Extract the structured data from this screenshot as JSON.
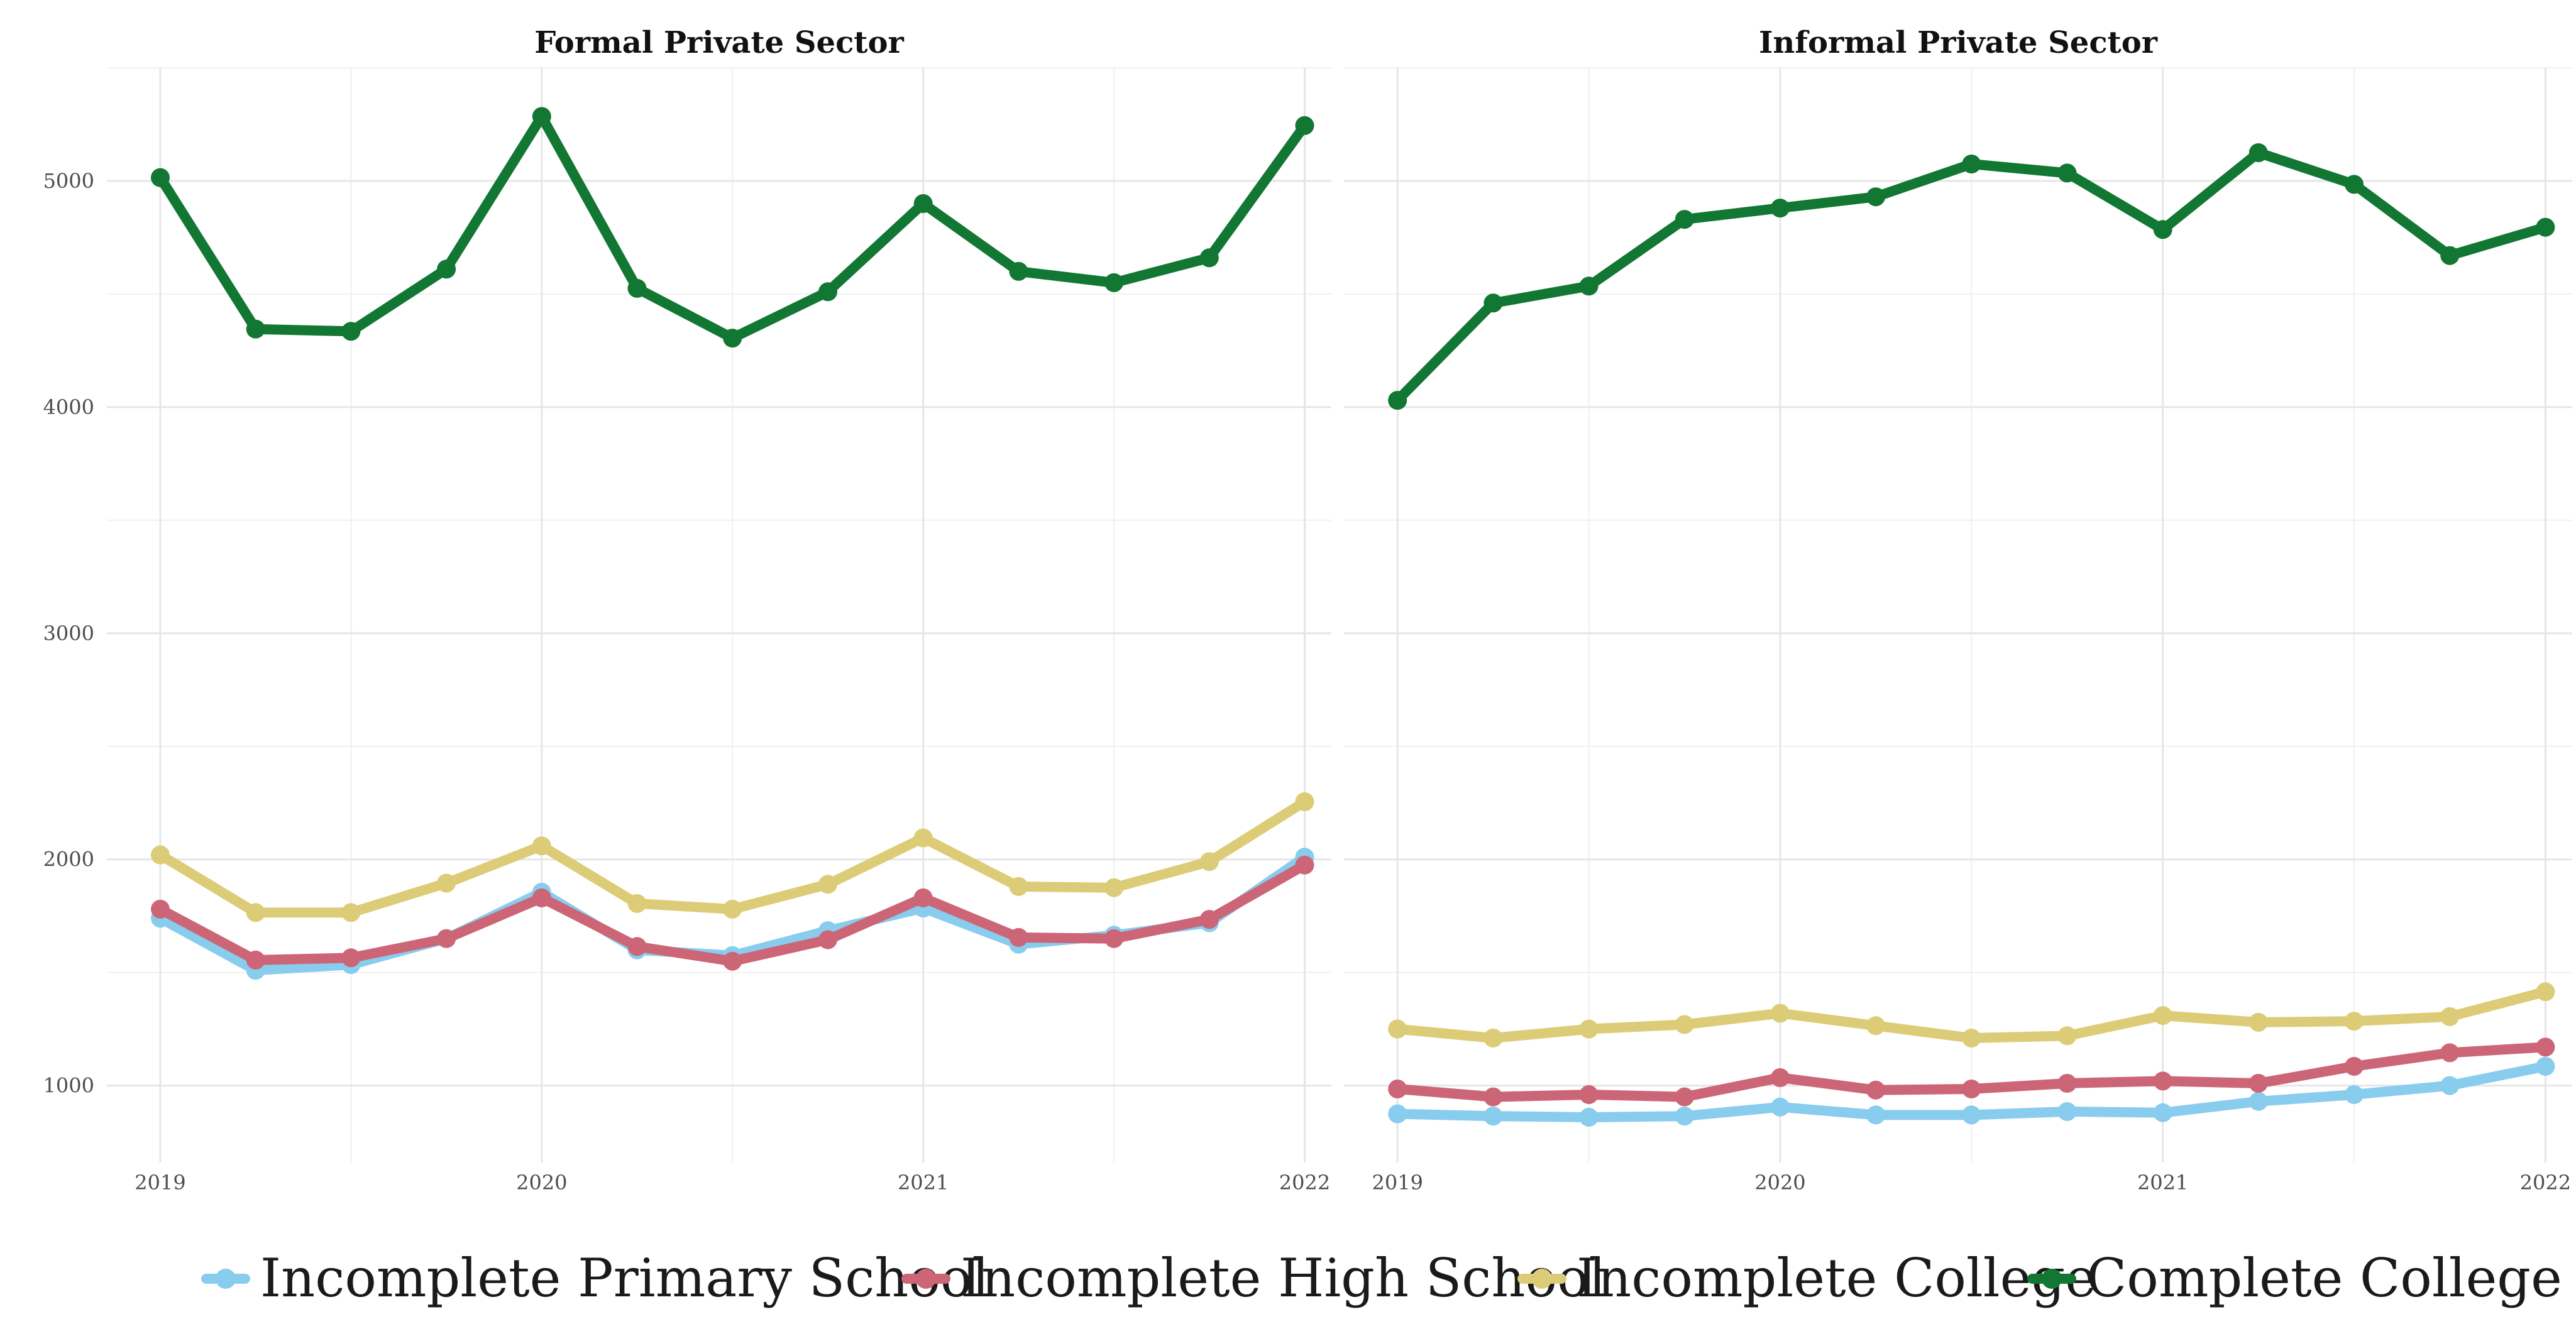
{
  "chart_data": {
    "type": "line",
    "legend_position": "bottom",
    "grid": true,
    "x": [
      2019.0,
      2019.25,
      2019.5,
      2019.75,
      2020.0,
      2020.25,
      2020.5,
      2020.75,
      2021.0,
      2021.25,
      2021.5,
      2021.75,
      2022.0
    ],
    "xticks": [
      2019,
      2020,
      2021,
      2022
    ],
    "xtick_labels": [
      "2019",
      "2020",
      "2021",
      "2022"
    ],
    "xlim": [
      2018.86,
      2022.07
    ],
    "ylim": [
      660,
      5500
    ],
    "yticks": [
      1000,
      2000,
      3000,
      4000,
      5000
    ],
    "ytick_labels": [
      "1000",
      "2000",
      "3000",
      "4000",
      "5000"
    ],
    "series_styles": [
      {
        "name": "Incomplete Primary School",
        "color": "#88CCEE"
      },
      {
        "name": "Incomplete High School",
        "color": "#CC6677"
      },
      {
        "name": "Incomplete College",
        "color": "#DDCC77"
      },
      {
        "name": "Complete College",
        "color": "#117733"
      }
    ],
    "panels": [
      {
        "title": "Formal Private Sector",
        "series": [
          {
            "name": "Incomplete Primary School",
            "values": [
              1740,
              1510,
              1535,
              1650,
              1855,
              1600,
              1575,
              1685,
              1785,
              1625,
              1665,
              1720,
              2010
            ]
          },
          {
            "name": "Incomplete High School",
            "values": [
              1780,
              1555,
              1565,
              1650,
              1830,
              1615,
              1550,
              1645,
              1830,
              1655,
              1650,
              1735,
              1975
            ]
          },
          {
            "name": "Incomplete College",
            "values": [
              2020,
              1765,
              1765,
              1895,
              2060,
              1805,
              1780,
              1890,
              2095,
              1880,
              1875,
              1990,
              2255
            ]
          },
          {
            "name": "Complete College",
            "values": [
              5015,
              4345,
              4335,
              4610,
              5285,
              4525,
              4305,
              4510,
              4900,
              4600,
              4550,
              4660,
              5245
            ]
          }
        ]
      },
      {
        "title": "Informal Private Sector",
        "series": [
          {
            "name": "Incomplete Primary School",
            "values": [
              875,
              865,
              860,
              865,
              905,
              870,
              870,
              885,
              880,
              930,
              960,
              1000,
              1085
            ]
          },
          {
            "name": "Incomplete High School",
            "values": [
              985,
              950,
              960,
              950,
              1035,
              980,
              985,
              1010,
              1020,
              1010,
              1085,
              1145,
              1170
            ]
          },
          {
            "name": "Incomplete College",
            "values": [
              1250,
              1210,
              1250,
              1270,
              1320,
              1265,
              1210,
              1220,
              1310,
              1280,
              1285,
              1305,
              1415
            ]
          },
          {
            "name": "Complete College",
            "values": [
              4030,
              4460,
              4535,
              4830,
              4880,
              4930,
              5075,
              5035,
              4785,
              5125,
              4985,
              4670,
              4795
            ]
          }
        ]
      }
    ]
  }
}
